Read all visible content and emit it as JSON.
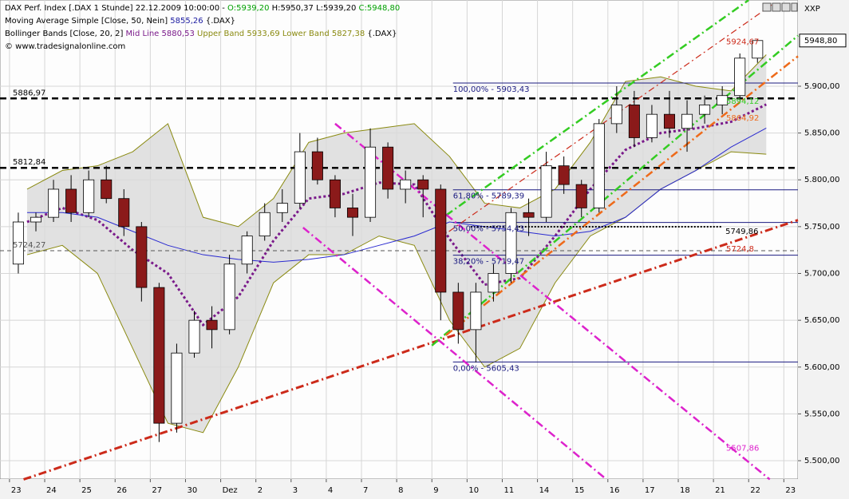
{
  "chart_data": {
    "type": "candlestick",
    "header": [
      [
        {
          "text": "DAX Perf. Index [.DAX  1 Stunde] 22.12.2009 10:00:00 - ",
          "color": "#000000"
        },
        {
          "text": "O:5939,20",
          "color": "#00a000"
        },
        {
          "text": " H:5950,37 L:5939,20 ",
          "color": "#000000"
        },
        {
          "text": "C:5948,80",
          "color": "#00a000"
        }
      ],
      [
        {
          "text": "Moving Average Simple [Close, 50, Nein] ",
          "color": "#000000"
        },
        {
          "text": "5855,26",
          "color": "#1a1aa0"
        },
        {
          "text": " {.DAX}",
          "color": "#000000"
        }
      ],
      [
        {
          "text": "Bollinger Bands [Close, 20, 2] ",
          "color": "#000000"
        },
        {
          "text": "Mid Line 5880,53",
          "color": "#7a1a8a"
        },
        {
          "text": " Upper Band 5933,69 Lower Band 5827,38",
          "color": "#8a8a10"
        },
        {
          "text": " {.DAX}",
          "color": "#000000"
        }
      ],
      [
        {
          "text": "© www.tradesignalonline.com",
          "color": "#000000"
        }
      ]
    ],
    "corner_label": "XXP",
    "xlim": [
      -0.27,
      22.4
    ],
    "ylim": [
      5480.4,
      5992.1
    ],
    "grid": true,
    "xticks": [
      {
        "value": 0,
        "label": "23"
      },
      {
        "value": 1,
        "label": "24"
      },
      {
        "value": 2,
        "label": "25"
      },
      {
        "value": 3,
        "label": "26"
      },
      {
        "value": 4,
        "label": "27"
      },
      {
        "value": 5,
        "label": "30"
      },
      {
        "value": 6,
        "label": "Dez"
      },
      {
        "value": 7,
        "label": "2"
      },
      {
        "value": 8,
        "label": "3"
      },
      {
        "value": 9,
        "label": "4"
      },
      {
        "value": 10,
        "label": "7"
      },
      {
        "value": 11,
        "label": "8"
      },
      {
        "value": 12,
        "label": "9"
      },
      {
        "value": 13,
        "label": "10"
      },
      {
        "value": 14,
        "label": "11"
      },
      {
        "value": 15,
        "label": "14"
      },
      {
        "value": 16,
        "label": "15"
      },
      {
        "value": 17,
        "label": "16"
      },
      {
        "value": 18,
        "label": "17"
      },
      {
        "value": 19,
        "label": "18"
      },
      {
        "value": 20,
        "label": "21"
      },
      {
        "value": 21,
        "label": "22"
      },
      {
        "value": 22,
        "label": "23"
      }
    ],
    "yticks": [
      {
        "value": 5500,
        "label": "5.500,00"
      },
      {
        "value": 5550,
        "label": "5.550,00"
      },
      {
        "value": 5600,
        "label": "5.600,00"
      },
      {
        "value": 5650,
        "label": "5.650,00"
      },
      {
        "value": 5700,
        "label": "5.700,00"
      },
      {
        "value": 5750,
        "label": "5.750,00"
      },
      {
        "value": 5800,
        "label": "5.800,00"
      },
      {
        "value": 5850,
        "label": "5.850,00"
      },
      {
        "value": 5900,
        "label": "5.900,00"
      }
    ],
    "last_price": {
      "value": 5948.8,
      "label": "5948,80"
    },
    "up_color": "#ffffff",
    "down_color": "#8b1a1a",
    "x": [
      0.25,
      0.75,
      1.25,
      1.75,
      2.25,
      2.75,
      3.25,
      3.75,
      4.25,
      4.75,
      5.25,
      5.75,
      6.25,
      6.75,
      7.25,
      7.75,
      8.25,
      8.75,
      9.25,
      9.75,
      10.25,
      10.75,
      11.25,
      11.75,
      12.25,
      12.75,
      13.25,
      13.75,
      14.25,
      14.75,
      15.25,
      15.75,
      16.25,
      16.75,
      17.25,
      17.75,
      18.25,
      18.75,
      19.25,
      19.75,
      20.25,
      20.75,
      21.25
    ],
    "open": [
      5710,
      5755,
      5760,
      5790,
      5765,
      5800,
      5780,
      5750,
      5685,
      5540,
      5615,
      5650,
      5640,
      5710,
      5740,
      5765,
      5775,
      5830,
      5800,
      5770,
      5760,
      5835,
      5790,
      5800,
      5790,
      5680,
      5640,
      5680,
      5700,
      5765,
      5760,
      5815,
      5795,
      5770,
      5860,
      5880,
      5845,
      5870,
      5855,
      5870,
      5880,
      5890,
      5930
    ],
    "high": [
      5765,
      5765,
      5800,
      5805,
      5810,
      5815,
      5790,
      5755,
      5690,
      5625,
      5660,
      5665,
      5720,
      5745,
      5775,
      5790,
      5850,
      5845,
      5805,
      5785,
      5855,
      5840,
      5810,
      5805,
      5795,
      5690,
      5690,
      5710,
      5770,
      5780,
      5830,
      5825,
      5800,
      5865,
      5900,
      5895,
      5880,
      5895,
      5885,
      5890,
      5900,
      5935,
      5950.37
    ],
    "low": [
      5700,
      5745,
      5755,
      5755,
      5760,
      5775,
      5740,
      5670,
      5520,
      5530,
      5610,
      5620,
      5635,
      5700,
      5735,
      5755,
      5770,
      5795,
      5760,
      5740,
      5755,
      5780,
      5775,
      5760,
      5650,
      5625,
      5605,
      5670,
      5690,
      5740,
      5755,
      5785,
      5760,
      5765,
      5850,
      5835,
      5840,
      5845,
      5830,
      5860,
      5870,
      5885,
      5925
    ],
    "close": [
      5755,
      5760,
      5790,
      5765,
      5800,
      5780,
      5750,
      5685,
      5540,
      5615,
      5650,
      5640,
      5710,
      5740,
      5765,
      5775,
      5830,
      5800,
      5770,
      5760,
      5835,
      5790,
      5800,
      5790,
      5680,
      5640,
      5680,
      5700,
      5765,
      5760,
      5815,
      5795,
      5770,
      5860,
      5880,
      5845,
      5870,
      5855,
      5870,
      5880,
      5890,
      5930,
      5948.8
    ],
    "bollinger": {
      "x": [
        0.5,
        1.5,
        2.5,
        3.5,
        4.5,
        5.5,
        6.5,
        7.5,
        8.5,
        9.5,
        10.5,
        11.5,
        12.5,
        13.5,
        14.5,
        15.5,
        16.5,
        17.5,
        18.5,
        19.5,
        20.5,
        21.5
      ],
      "upper": [
        5790,
        5810,
        5815,
        5830,
        5860,
        5760,
        5750,
        5780,
        5840,
        5850,
        5855,
        5860,
        5825,
        5775,
        5770,
        5790,
        5840,
        5905,
        5910,
        5900,
        5895,
        5933.69
      ],
      "lower": [
        5720,
        5730,
        5700,
        5620,
        5540,
        5530,
        5600,
        5690,
        5720,
        5720,
        5740,
        5730,
        5650,
        5600,
        5620,
        5690,
        5740,
        5760,
        5790,
        5810,
        5830,
        5827.38
      ],
      "mid": [
        5755,
        5770,
        5757,
        5725,
        5700,
        5645,
        5675,
        5735,
        5780,
        5785,
        5797,
        5795,
        5737,
        5688,
        5695,
        5740,
        5790,
        5832,
        5850,
        5855,
        5862,
        5880.53
      ],
      "band_color": "#8a8a10",
      "mid_color": "#7a1a8a",
      "fill": "#d9d9d9"
    },
    "moving_average": {
      "values": [
        5765,
        5765,
        5760,
        5745,
        5730,
        5720,
        5715,
        5712,
        5715,
        5720,
        5730,
        5740,
        5755,
        5750,
        5745,
        5740,
        5745,
        5760,
        5790,
        5810,
        5835,
        5855.26
      ],
      "color": "#2a2ad0"
    },
    "levels": [
      {
        "value": 5886.97,
        "label": "5886,97",
        "color": "#000000",
        "width": 2.5,
        "dash": "8,5"
      },
      {
        "value": 5812.84,
        "label": "5812,84",
        "color": "#000000",
        "width": 2.5,
        "dash": "8,5"
      },
      {
        "value": 5724.27,
        "label": "5724,27",
        "color": "#555555",
        "width": 1,
        "dash": "5,4"
      },
      {
        "value": 5749.86,
        "label": "5749,86",
        "color": "#000000",
        "width": 2,
        "dash": "2,2",
        "x": [
          13.1,
          20.25
        ]
      }
    ],
    "fib_start": 12.6,
    "fib_color": "#1a1a80",
    "fib_levels": [
      {
        "value": 5903.43,
        "label": "100,00% - 5903,43"
      },
      {
        "value": 5789.39,
        "label": "61,80% - 5789,39"
      },
      {
        "value": 5754.43,
        "label": "50,00% - 5754,43"
      },
      {
        "value": 5719.47,
        "label": "38,20% - 5719,47"
      },
      {
        "value": 5605.43,
        "label": "0,00% - 5605,43"
      }
    ],
    "trendlines": [
      {
        "x": [
          0.4,
          22.4
        ],
        "values": [
          5480,
          5757
        ],
        "color": "#cc2a1a",
        "width": 3,
        "dash": "10,4,2,4",
        "label": "5724,8"
      },
      {
        "x": [
          12.15,
          21.7
        ],
        "values": [
          5736,
          5988
        ],
        "color": "#cc2a1a",
        "width": 1.2,
        "dash": "8,4,2,4",
        "label": "5924,67"
      },
      {
        "x": [
          12.4,
          21.0
        ],
        "values": [
          5762,
          5992
        ],
        "color": "#33cc22",
        "width": 2.5,
        "dash": "10,4,2,4"
      },
      {
        "x": [
          12.0,
          22.4
        ],
        "values": [
          5623,
          5954
        ],
        "color": "#33cc22",
        "width": 2.5,
        "dash": "10,4,2,4",
        "label": "5894,12"
      },
      {
        "x": [
          12.4,
          22.4
        ],
        "values": [
          5634,
          5932
        ],
        "color": "#ee6a1a",
        "width": 2.5,
        "dash": "10,4,2,4",
        "label": "5864,92"
      },
      {
        "x": [
          9.25,
          21.6
        ],
        "values": [
          5860,
          5480
        ],
        "color": "#dd22cc",
        "width": 2.5,
        "dash": "10,4,2,4",
        "label": "5507,86"
      },
      {
        "x": [
          8.34,
          16.96
        ],
        "values": [
          5749,
          5480
        ],
        "color": "#dd22cc",
        "width": 2.5,
        "dash": "10,4,2,4"
      }
    ]
  }
}
